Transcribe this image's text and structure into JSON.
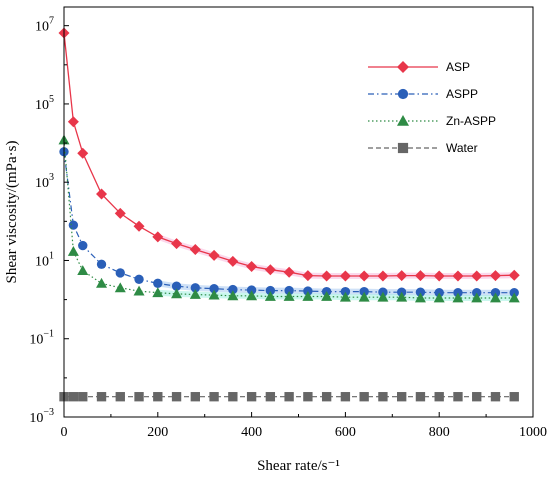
{
  "chart_data": {
    "type": "line",
    "xlabel": "Shear rate/s⁻¹",
    "ylabel": "Shear viscosity/(mPa·s)",
    "xlim": [
      0,
      1000
    ],
    "ylim": [
      0.001,
      30000000
    ],
    "y_scale": "log",
    "x_ticks": [
      "0",
      "200",
      "400",
      "600",
      "800",
      "1000"
    ],
    "y_ticks": [
      {
        "value": 0.001,
        "base": "10",
        "exp": "−3"
      },
      {
        "value": 0.1,
        "base": "10",
        "exp": "−1"
      },
      {
        "value": 10,
        "base": "10",
        "exp": "1"
      },
      {
        "value": 1000,
        "base": "10",
        "exp": "3"
      },
      {
        "value": 100000,
        "base": "10",
        "exp": "5"
      },
      {
        "value": 10000000,
        "base": "10",
        "exp": "7"
      }
    ],
    "legend_position": "top-right",
    "grid": false,
    "series": [
      {
        "name": "ASP",
        "color": "#e8364a",
        "marker": "diamond",
        "line": "solid",
        "band_color": "#f7b8dc",
        "points": [
          [
            0,
            6500000
          ],
          [
            20,
            35000
          ],
          [
            40,
            5500
          ],
          [
            80,
            500
          ],
          [
            120,
            160
          ],
          [
            160,
            75
          ],
          [
            200,
            40
          ],
          [
            240,
            27
          ],
          [
            280,
            19
          ],
          [
            320,
            13.5
          ],
          [
            360,
            9.5
          ],
          [
            400,
            7
          ],
          [
            440,
            5.8
          ],
          [
            480,
            5
          ],
          [
            520,
            4.1
          ],
          [
            560,
            4
          ],
          [
            600,
            4
          ],
          [
            640,
            4
          ],
          [
            680,
            4
          ],
          [
            720,
            4.1
          ],
          [
            760,
            4.1
          ],
          [
            800,
            4
          ],
          [
            840,
            4
          ],
          [
            880,
            4
          ],
          [
            920,
            4.1
          ],
          [
            960,
            4.2
          ]
        ]
      },
      {
        "name": "ASPP",
        "color": "#2a5fb8",
        "marker": "circle",
        "line": "dashdot",
        "band_color": "#a8c8f0",
        "points": [
          [
            0,
            6000
          ],
          [
            20,
            80
          ],
          [
            40,
            24
          ],
          [
            80,
            8
          ],
          [
            120,
            4.8
          ],
          [
            160,
            3.3
          ],
          [
            200,
            2.6
          ],
          [
            240,
            2.2
          ],
          [
            280,
            2.0
          ],
          [
            320,
            1.9
          ],
          [
            360,
            1.8
          ],
          [
            400,
            1.75
          ],
          [
            440,
            1.7
          ],
          [
            480,
            1.7
          ],
          [
            520,
            1.65
          ],
          [
            560,
            1.6
          ],
          [
            600,
            1.6
          ],
          [
            640,
            1.6
          ],
          [
            680,
            1.55
          ],
          [
            720,
            1.55
          ],
          [
            760,
            1.55
          ],
          [
            800,
            1.5
          ],
          [
            840,
            1.5
          ],
          [
            880,
            1.5
          ],
          [
            920,
            1.5
          ],
          [
            960,
            1.5
          ]
        ]
      },
      {
        "name": "Zn-ASPP",
        "color": "#2e8b45",
        "marker": "triangle",
        "line": "dotted",
        "band_color": "#9ff0e0",
        "points": [
          [
            0,
            12000
          ],
          [
            20,
            17
          ],
          [
            40,
            5.5
          ],
          [
            80,
            2.6
          ],
          [
            120,
            2.0
          ],
          [
            160,
            1.65
          ],
          [
            200,
            1.5
          ],
          [
            240,
            1.4
          ],
          [
            280,
            1.35
          ],
          [
            320,
            1.3
          ],
          [
            360,
            1.25
          ],
          [
            400,
            1.25
          ],
          [
            440,
            1.2
          ],
          [
            480,
            1.2
          ],
          [
            520,
            1.2
          ],
          [
            560,
            1.2
          ],
          [
            600,
            1.15
          ],
          [
            640,
            1.15
          ],
          [
            680,
            1.15
          ],
          [
            720,
            1.15
          ],
          [
            760,
            1.1
          ],
          [
            800,
            1.1
          ],
          [
            840,
            1.1
          ],
          [
            880,
            1.1
          ],
          [
            920,
            1.1
          ],
          [
            960,
            1.1
          ]
        ]
      },
      {
        "name": "Water",
        "color": "#666666",
        "marker": "square",
        "line": "dashed",
        "band_color": "",
        "points": [
          [
            0,
            0.0033
          ],
          [
            20,
            0.0033
          ],
          [
            40,
            0.0033
          ],
          [
            80,
            0.0033
          ],
          [
            120,
            0.0033
          ],
          [
            160,
            0.0033
          ],
          [
            200,
            0.0033
          ],
          [
            240,
            0.0033
          ],
          [
            280,
            0.0033
          ],
          [
            320,
            0.0033
          ],
          [
            360,
            0.0033
          ],
          [
            400,
            0.0033
          ],
          [
            440,
            0.0033
          ],
          [
            480,
            0.0033
          ],
          [
            520,
            0.0033
          ],
          [
            560,
            0.0033
          ],
          [
            600,
            0.0033
          ],
          [
            640,
            0.0033
          ],
          [
            680,
            0.0033
          ],
          [
            720,
            0.0033
          ],
          [
            760,
            0.0033
          ],
          [
            800,
            0.0033
          ],
          [
            840,
            0.0033
          ],
          [
            880,
            0.0033
          ],
          [
            920,
            0.0033
          ],
          [
            960,
            0.0033
          ]
        ]
      }
    ]
  }
}
